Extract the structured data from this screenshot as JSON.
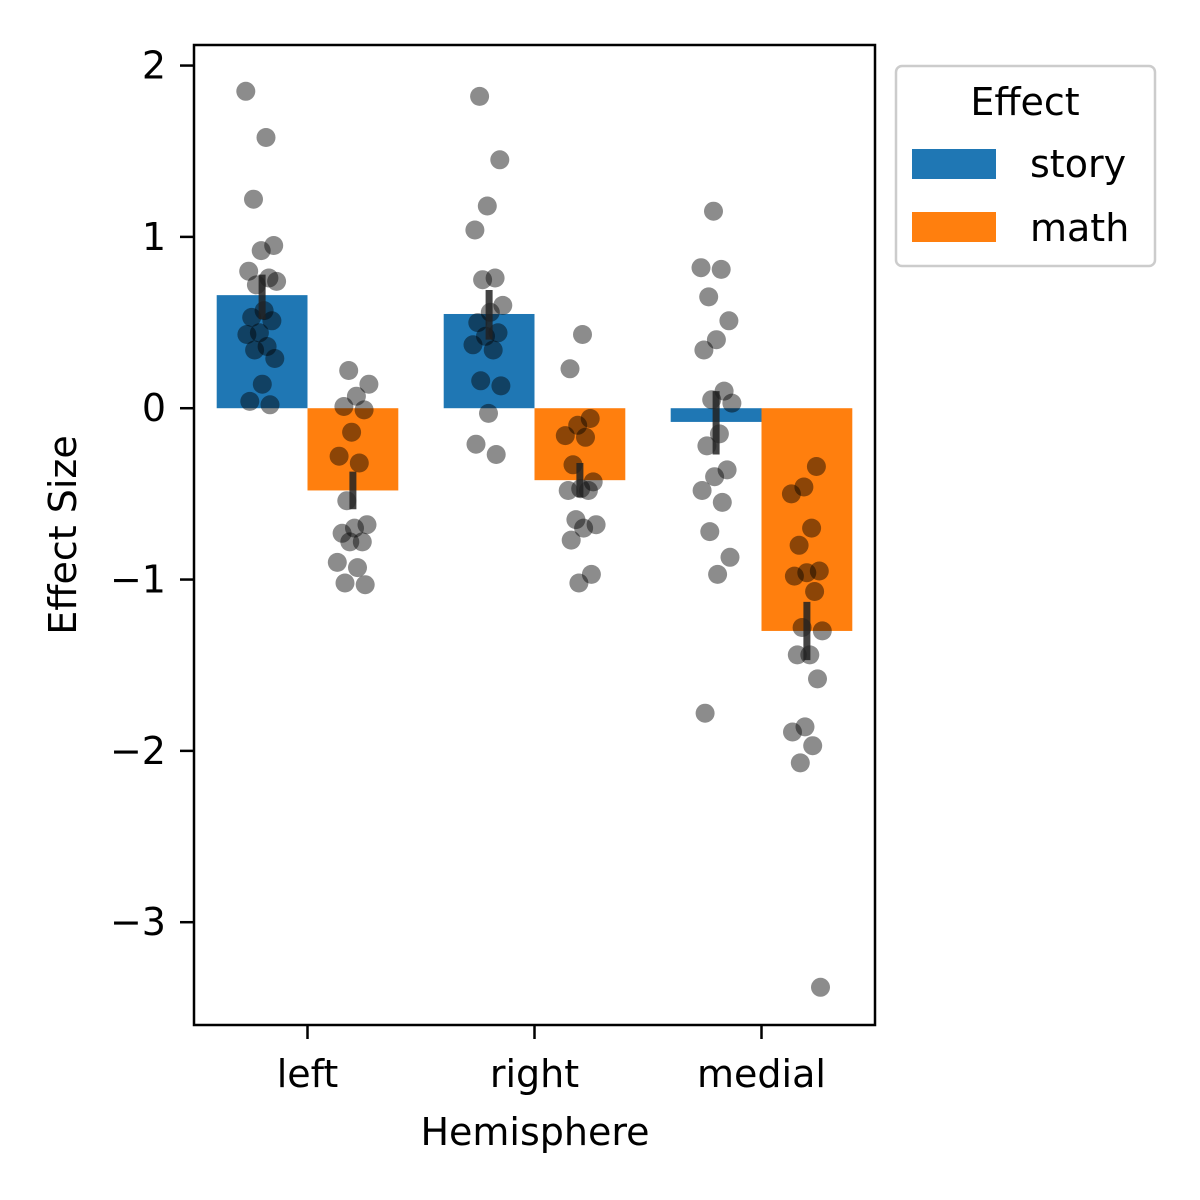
{
  "chart_data": {
    "type": "bar",
    "xlabel": "Hemisphere",
    "ylabel": "Effect Size",
    "categories": [
      "left",
      "right",
      "medial"
    ],
    "ylim": [
      -3.6,
      2.12
    ],
    "yticks": [
      2,
      1,
      0,
      -1,
      -2,
      -3
    ],
    "ytick_labels": [
      "2",
      "1",
      "0",
      "−1",
      "−2",
      "−3"
    ],
    "legend": {
      "title": "Effect",
      "position": "outside top-right"
    },
    "series": [
      {
        "name": "story",
        "color": "#1f77b4",
        "values": [
          0.66,
          0.55,
          -0.08
        ],
        "ci": [
          [
            0.52,
            0.78
          ],
          [
            0.4,
            0.69
          ],
          [
            -0.27,
            0.1
          ]
        ],
        "points": [
          [
            1.85,
            1.58,
            1.22,
            0.95,
            0.92,
            0.8,
            0.76,
            0.72,
            0.74,
            0.57,
            0.53,
            0.51,
            0.44,
            0.43,
            0.36,
            0.34,
            0.29,
            0.14,
            0.04,
            0.02
          ],
          [
            1.82,
            1.45,
            1.18,
            1.04,
            0.76,
            0.75,
            0.6,
            0.56,
            0.5,
            0.44,
            0.42,
            0.37,
            0.34,
            0.16,
            0.13,
            -0.03,
            -0.21,
            -0.27
          ],
          [
            1.15,
            0.82,
            0.81,
            0.65,
            0.51,
            0.4,
            0.34,
            0.1,
            0.05,
            0.03,
            -0.15,
            -0.22,
            -0.36,
            -0.4,
            -0.48,
            -0.55,
            -0.72,
            -0.87,
            -0.97,
            -1.78
          ]
        ]
      },
      {
        "name": "math",
        "color": "#ff7f0e",
        "values": [
          -0.48,
          -0.42,
          -1.3
        ],
        "ci": [
          [
            -0.59,
            -0.37
          ],
          [
            -0.52,
            -0.32
          ],
          [
            -1.47,
            -1.13
          ]
        ],
        "points": [
          [
            0.22,
            0.14,
            0.07,
            0.01,
            -0.01,
            -0.14,
            -0.28,
            -0.32,
            -0.54,
            -0.68,
            -0.7,
            -0.73,
            -0.78,
            -0.78,
            -0.9,
            -0.93,
            -1.02,
            -1.03
          ],
          [
            0.43,
            0.23,
            -0.06,
            -0.1,
            -0.16,
            -0.17,
            -0.33,
            -0.43,
            -0.47,
            -0.48,
            -0.48,
            -0.65,
            -0.68,
            -0.7,
            -0.77,
            -0.97,
            -1.02
          ],
          [
            -0.34,
            -0.46,
            -0.5,
            -0.7,
            -0.8,
            -0.95,
            -0.96,
            -0.98,
            -1.07,
            -1.28,
            -1.3,
            -1.44,
            -1.44,
            -1.58,
            -1.86,
            -1.89,
            -1.97,
            -2.07,
            -3.38
          ]
        ]
      }
    ]
  }
}
